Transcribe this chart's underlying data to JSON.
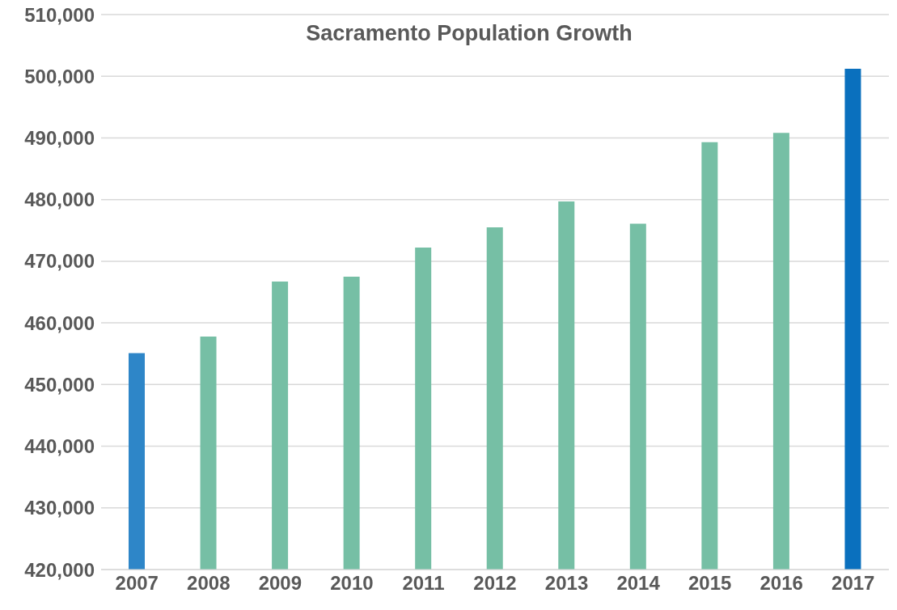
{
  "chart_data": {
    "type": "bar",
    "title": "Sacramento Population Growth",
    "categories": [
      "2007",
      "2008",
      "2009",
      "2010",
      "2011",
      "2012",
      "2013",
      "2014",
      "2015",
      "2016",
      "2017"
    ],
    "values": [
      455100,
      457800,
      466700,
      467500,
      472200,
      475500,
      479700,
      476100,
      489300,
      490800,
      501200
    ],
    "colors": [
      "#2e86c8",
      "#76bfa5",
      "#76bfa5",
      "#76bfa5",
      "#76bfa5",
      "#76bfa5",
      "#76bfa5",
      "#76bfa5",
      "#76bfa5",
      "#76bfa5",
      "#0a70be"
    ],
    "ylim": [
      420000,
      510000
    ],
    "yticks": [
      {
        "value": 420000,
        "label": "420,000"
      },
      {
        "value": 430000,
        "label": "430,000"
      },
      {
        "value": 440000,
        "label": "440,000"
      },
      {
        "value": 450000,
        "label": "450,000"
      },
      {
        "value": 460000,
        "label": "460,000"
      },
      {
        "value": 470000,
        "label": "470,000"
      },
      {
        "value": 480000,
        "label": "480,000"
      },
      {
        "value": 490000,
        "label": "490,000"
      },
      {
        "value": 500000,
        "label": "500,000"
      },
      {
        "value": 510000,
        "label": "510,000"
      }
    ],
    "grid": "y"
  }
}
